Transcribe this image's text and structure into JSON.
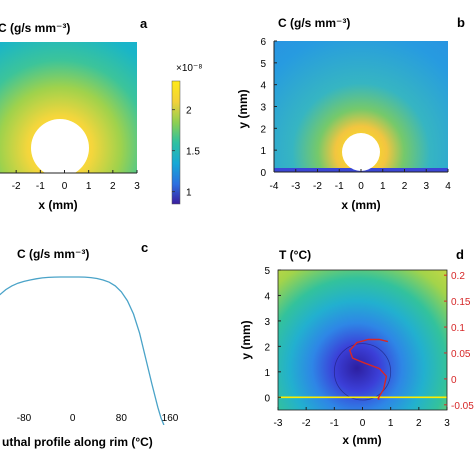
{
  "chart_data": [
    {
      "panel": "a",
      "type": "heatmap",
      "title": "C (g/s mm⁻³)",
      "xlabel": "x (mm)",
      "ylabel": "",
      "x_ticks": [
        "-2",
        "-1",
        "0",
        "1",
        "2",
        "3"
      ],
      "xlim": [
        -3,
        3
      ],
      "ylim": [
        0,
        6
      ],
      "obstacle": {
        "center": [
          0,
          0.8
        ],
        "radius": 1.0
      },
      "colorbar": {
        "exponent_label": "×10⁻⁸",
        "ticks": [
          "2",
          "1.5",
          "1"
        ],
        "tick_values": [
          2,
          1.5,
          1
        ],
        "range": [
          0.85,
          2.35
        ],
        "colors": [
          "#3b1e9e",
          "#2c6fe0",
          "#17a8d6",
          "#2fc1a0",
          "#8ccf52",
          "#f2d13a",
          "#ffea18"
        ]
      }
    },
    {
      "panel": "b",
      "type": "heatmap",
      "title": "C (g/s mm⁻³)",
      "xlabel": "x (mm)",
      "ylabel": "y (mm)",
      "x_ticks": [
        "-4",
        "-3",
        "-2",
        "-1",
        "0",
        "1",
        "2",
        "3",
        "4"
      ],
      "y_ticks": [
        "0",
        "1",
        "2",
        "3",
        "4",
        "5",
        "6"
      ],
      "xlim": [
        -4,
        4
      ],
      "ylim": [
        0,
        6
      ],
      "obstacle": {
        "center": [
          0,
          0.9
        ],
        "radius": 0.9
      }
    },
    {
      "panel": "c",
      "type": "line",
      "title": "C (g/s mm⁻³)",
      "xlabel": "uthal profile along rim (°C)",
      "ylabel": "",
      "x_ticks": [
        "-80",
        "0",
        "80",
        "160"
      ],
      "xlim": [
        -150,
        170
      ],
      "ylim": [
        0,
        1.05
      ],
      "series": [
        {
          "color": "#4aa3c8",
          "x": [
            -150,
            -140,
            -130,
            -120,
            -110,
            -100,
            -90,
            -80,
            -70,
            -60,
            -50,
            -40,
            -30,
            -20,
            -10,
            0,
            10,
            20,
            30,
            40,
            50,
            60,
            70,
            80,
            90,
            100,
            110,
            120,
            130,
            140,
            145,
            150
          ],
          "y": [
            0.7,
            0.78,
            0.84,
            0.88,
            0.915,
            0.94,
            0.958,
            0.97,
            0.98,
            0.988,
            0.994,
            0.997,
            0.999,
            1.0,
            1.0,
            1.0,
            1.0,
            0.999,
            0.996,
            0.99,
            0.98,
            0.965,
            0.94,
            0.9,
            0.84,
            0.75,
            0.62,
            0.45,
            0.28,
            0.12,
            0.05,
            0.0
          ]
        }
      ]
    },
    {
      "panel": "d",
      "type": "heatmap",
      "title": "T (°C)",
      "xlabel": "x (mm)",
      "ylabel": "y (mm)",
      "x_ticks": [
        "-3",
        "-2",
        "-1",
        "0",
        "1",
        "2",
        "3"
      ],
      "y_ticks": [
        "0",
        "1",
        "2",
        "3",
        "4",
        "5"
      ],
      "y2_ticks": [
        "0.2",
        "0.15",
        "0.1",
        "0.05",
        "0",
        "-0.05"
      ],
      "y2_values": [
        0.2,
        0.15,
        0.1,
        0.05,
        0,
        -0.05
      ],
      "xlim": [
        -3,
        3
      ],
      "ylim": [
        -0.5,
        5
      ],
      "y2lim": [
        -0.06,
        0.21
      ],
      "baseline_color": "#ffee00",
      "profile_color": "#d62728",
      "rim": {
        "center": [
          0,
          1
        ],
        "radius": 1
      },
      "profile": {
        "x": [
          0.9,
          0.6,
          0.2,
          -0.2,
          -0.45,
          -0.35,
          0.1,
          0.6,
          0.85,
          0.75,
          0.55,
          0.6
        ],
        "y2": [
          0.072,
          0.076,
          0.076,
          0.07,
          0.055,
          0.04,
          0.03,
          0.02,
          0.005,
          -0.02,
          -0.038,
          -0.04
        ]
      }
    }
  ],
  "panel_letters": [
    "a",
    "b",
    "c",
    "d"
  ]
}
